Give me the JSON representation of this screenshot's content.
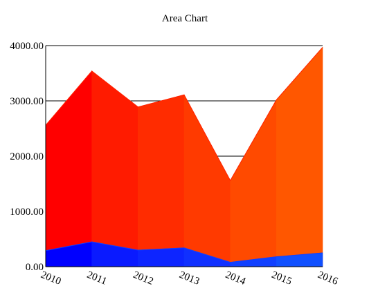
{
  "chart_data": {
    "type": "area",
    "title": "Area Chart",
    "xlabel": "",
    "ylabel": "",
    "x": [
      "2010",
      "2011",
      "2012",
      "2013",
      "2014",
      "2015",
      "2016"
    ],
    "ylim": [
      0,
      4000
    ],
    "yticks": [
      "0.00",
      "1000.00",
      "2000.00",
      "3000.00",
      "4000.00"
    ],
    "grid": true,
    "legend": "none",
    "stacking": "overlapping",
    "series": [
      {
        "values": [
          2560,
          3540,
          2890,
          3110,
          1560,
          3020,
          3970
        ],
        "colors": [
          "#ff0000",
          "#ff1b00",
          "#ff2c00",
          "#ff3a00",
          "#ff4a00",
          "#ff5700",
          "#ff6600"
        ],
        "line_color": "#ff2200"
      },
      {
        "values": [
          290,
          450,
          300,
          340,
          80,
          180,
          250
        ],
        "colors": [
          "#0000ff",
          "#0a1aff",
          "#0d25ff",
          "#1030ff",
          "#1040ff",
          "#1050ff",
          "#1060ff"
        ],
        "line_color": "#1040ff"
      }
    ]
  }
}
